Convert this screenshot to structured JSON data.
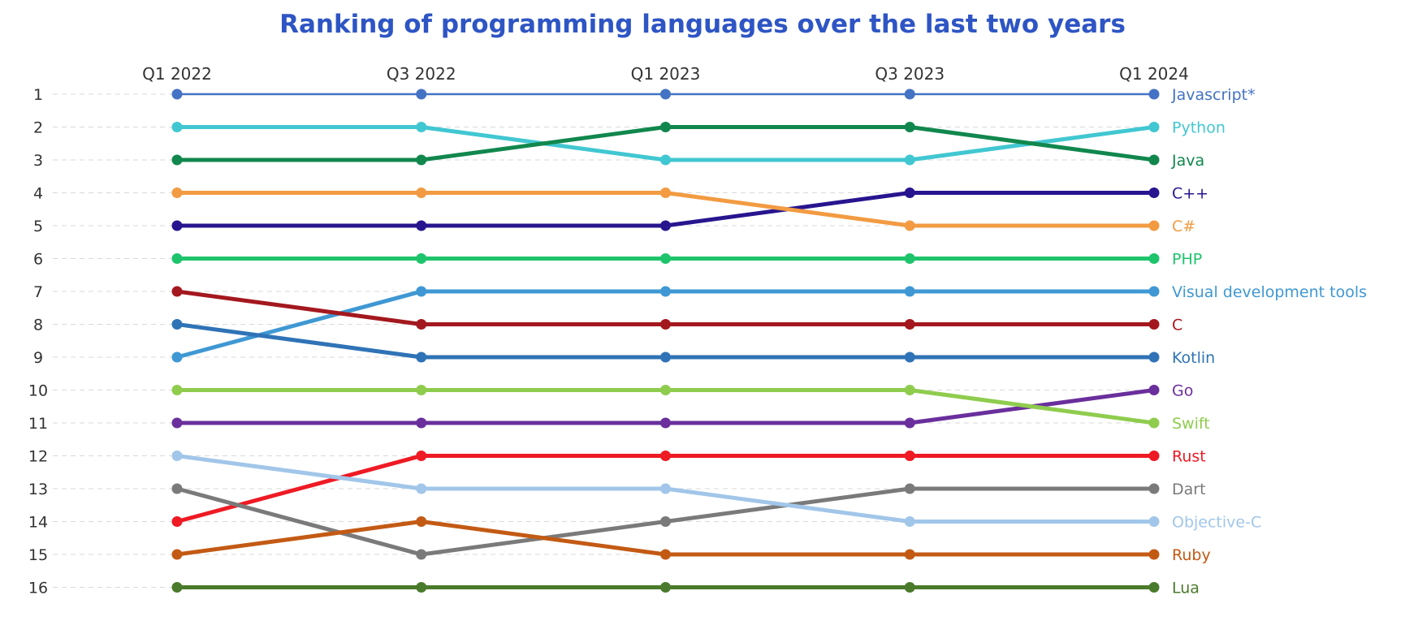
{
  "chart_data": {
    "type": "line",
    "title": "Ranking of programming languages over the last two years",
    "categories": [
      "Q1 2022",
      "Q3 2022",
      "Q1 2023",
      "Q3 2023",
      "Q1 2024"
    ],
    "y_ticks": [
      1,
      2,
      3,
      4,
      5,
      6,
      7,
      8,
      9,
      10,
      11,
      12,
      13,
      14,
      15,
      16
    ],
    "ylim": [
      1,
      16
    ],
    "y_inverted": true,
    "grid": "horizontal-dashed",
    "series": [
      {
        "name": "Javascript*",
        "color": "#4472c4",
        "values": [
          1,
          1,
          1,
          1,
          1
        ]
      },
      {
        "name": "Python",
        "color": "#41c7d1",
        "values": [
          2,
          2,
          3,
          3,
          2
        ]
      },
      {
        "name": "Java",
        "color": "#11874d",
        "values": [
          3,
          3,
          2,
          2,
          3
        ]
      },
      {
        "name": "C++",
        "color": "#27158f",
        "values": [
          5,
          5,
          5,
          4,
          4
        ]
      },
      {
        "name": "C#",
        "color": "#f29b42",
        "values": [
          4,
          4,
          4,
          5,
          5
        ]
      },
      {
        "name": "PHP",
        "color": "#1ec46c",
        "values": [
          6,
          6,
          6,
          6,
          6
        ]
      },
      {
        "name": "Visual development tools",
        "color": "#3f98d3",
        "values": [
          9,
          7,
          7,
          7,
          7
        ]
      },
      {
        "name": "C",
        "color": "#a3181e",
        "values": [
          7,
          8,
          8,
          8,
          8
        ]
      },
      {
        "name": "Kotlin",
        "color": "#2f73b6",
        "values": [
          8,
          9,
          9,
          9,
          9
        ]
      },
      {
        "name": "Go",
        "color": "#6a2f9c",
        "values": [
          11,
          11,
          11,
          11,
          10
        ]
      },
      {
        "name": "Swift",
        "color": "#8fcc4e",
        "values": [
          10,
          10,
          10,
          10,
          11
        ]
      },
      {
        "name": "Rust",
        "color": "#ee1a24",
        "values": [
          14,
          12,
          12,
          12,
          12
        ]
      },
      {
        "name": "Dart",
        "color": "#7a7a7a",
        "values": [
          13,
          15,
          14,
          13,
          13
        ]
      },
      {
        "name": "Objective-C",
        "color": "#a1c6e9",
        "values": [
          12,
          13,
          13,
          14,
          14
        ]
      },
      {
        "name": "Ruby",
        "color": "#c35a14",
        "values": [
          15,
          14,
          15,
          15,
          15
        ]
      },
      {
        "name": "Lua",
        "color": "#4a7a2b",
        "values": [
          16,
          16,
          16,
          16,
          16
        ]
      }
    ]
  }
}
